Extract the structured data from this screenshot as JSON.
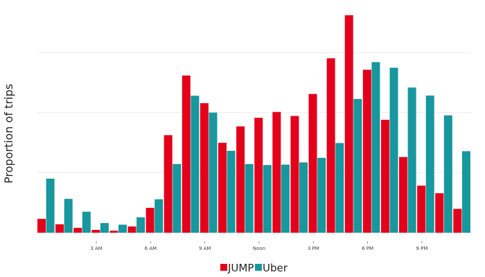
{
  "chart_data": {
    "type": "bar",
    "ylabel": "Proportion of trips",
    "xlabel": "",
    "x": [
      0,
      1,
      2,
      3,
      4,
      5,
      6,
      7,
      8,
      9,
      10,
      11,
      12,
      13,
      14,
      15,
      16,
      17,
      18,
      19,
      20,
      21,
      22,
      23
    ],
    "x_ticks": [
      {
        "hour": 3,
        "label": "3 AM"
      },
      {
        "hour": 6,
        "label": "6 AM"
      },
      {
        "hour": 9,
        "label": "9 AM"
      },
      {
        "hour": 12,
        "label": "Noon"
      },
      {
        "hour": 15,
        "label": "3 PM"
      },
      {
        "hour": 18,
        "label": "6 PM"
      },
      {
        "hour": 21,
        "label": "9 PM"
      }
    ],
    "ylim": [
      0,
      0.11
    ],
    "y_gridlines": [
      0,
      0.03,
      0.06,
      0.09
    ],
    "y_tick_labels_shown": false,
    "grid": true,
    "legend_position": "bottom-center",
    "series": [
      {
        "name": "JUMP",
        "color": "#E4001B",
        "values": [
          0.0069,
          0.0042,
          0.0024,
          0.0014,
          0.001,
          0.0031,
          0.0124,
          0.0487,
          0.0785,
          0.0647,
          0.0449,
          0.0531,
          0.0574,
          0.0603,
          0.0583,
          0.0693,
          0.0871,
          0.1086,
          0.0814,
          0.0564,
          0.0378,
          0.0235,
          0.0197,
          0.0119
        ]
      },
      {
        "name": "Uber",
        "color": "#17979E",
        "values": [
          0.027,
          0.0169,
          0.0105,
          0.0048,
          0.004,
          0.0077,
          0.0167,
          0.0343,
          0.0684,
          0.06,
          0.0409,
          0.0343,
          0.0338,
          0.034,
          0.0351,
          0.0374,
          0.0448,
          0.0668,
          0.0852,
          0.0824,
          0.0725,
          0.0685,
          0.0586,
          0.0407
        ]
      }
    ]
  }
}
